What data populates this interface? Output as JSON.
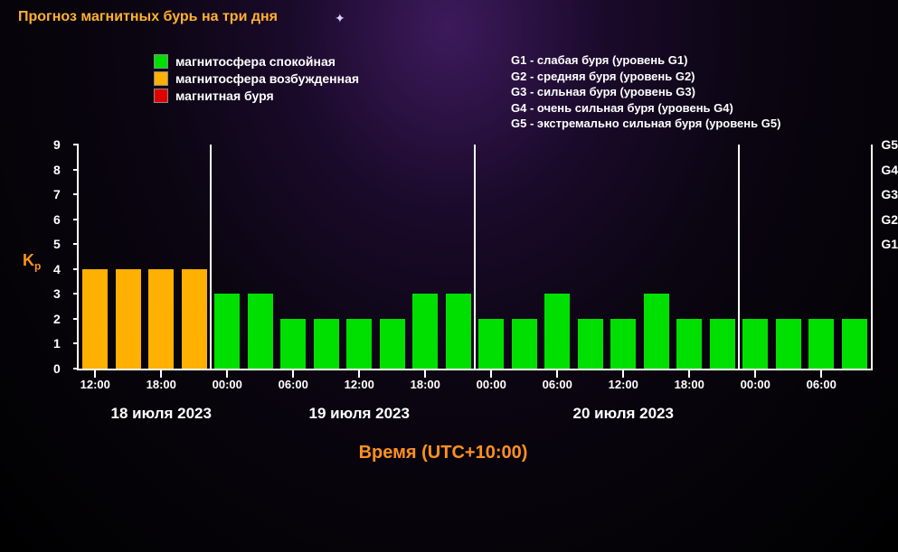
{
  "title": "Прогноз магнитных бурь на три дня",
  "legend": {
    "items": [
      {
        "color": "#00e000",
        "label": "магнитосфера спокойная"
      },
      {
        "color": "#ffb000",
        "label": "магнитосфера возбужденная"
      },
      {
        "color": "#e00000",
        "label": "магнитная буря"
      }
    ]
  },
  "g_scale_text": [
    "G1 - слабая буря (уровень G1)",
    "G2 - средняя буря (уровень G2)",
    "G3 - сильная буря (уровень G3)",
    "G4 - очень сильная буря (уровень G4)",
    "G5 - экстремально сильная буря (уровень G5)"
  ],
  "chart": {
    "type": "bar",
    "y_label": "Kp",
    "y_ticks": [
      0,
      1,
      2,
      3,
      4,
      5,
      6,
      7,
      8,
      9
    ],
    "ylim": [
      0,
      9
    ],
    "g_labels": [
      {
        "at": 5,
        "text": "G1"
      },
      {
        "at": 6,
        "text": "G2"
      },
      {
        "at": 7,
        "text": "G3"
      },
      {
        "at": 8,
        "text": "G4"
      },
      {
        "at": 9,
        "text": "G5"
      }
    ],
    "colors": {
      "calm": "#00e000",
      "excited": "#ffb000",
      "storm": "#e00000",
      "axis": "#ffffff",
      "text": "#ffffff",
      "accent": "#ff9020"
    },
    "day_dividers_at_bar_index": [
      4,
      12,
      20
    ],
    "bars": [
      {
        "value": 4,
        "color": "#ffb000"
      },
      {
        "value": 4,
        "color": "#ffb000"
      },
      {
        "value": 4,
        "color": "#ffb000"
      },
      {
        "value": 4,
        "color": "#ffb000"
      },
      {
        "value": 3,
        "color": "#00e000"
      },
      {
        "value": 3,
        "color": "#00e000"
      },
      {
        "value": 2,
        "color": "#00e000"
      },
      {
        "value": 2,
        "color": "#00e000"
      },
      {
        "value": 2,
        "color": "#00e000"
      },
      {
        "value": 2,
        "color": "#00e000"
      },
      {
        "value": 3,
        "color": "#00e000"
      },
      {
        "value": 3,
        "color": "#00e000"
      },
      {
        "value": 2,
        "color": "#00e000"
      },
      {
        "value": 2,
        "color": "#00e000"
      },
      {
        "value": 3,
        "color": "#00e000"
      },
      {
        "value": 2,
        "color": "#00e000"
      },
      {
        "value": 2,
        "color": "#00e000"
      },
      {
        "value": 3,
        "color": "#00e000"
      },
      {
        "value": 2,
        "color": "#00e000"
      },
      {
        "value": 2,
        "color": "#00e000"
      },
      {
        "value": 2,
        "color": "#00e000"
      },
      {
        "value": 2,
        "color": "#00e000"
      },
      {
        "value": 2,
        "color": "#00e000"
      },
      {
        "value": 2,
        "color": "#00e000"
      }
    ],
    "x_ticks": [
      {
        "at": 0,
        "label": "12:00"
      },
      {
        "at": 2,
        "label": "18:00"
      },
      {
        "at": 4,
        "label": "00:00"
      },
      {
        "at": 6,
        "label": "06:00"
      },
      {
        "at": 8,
        "label": "12:00"
      },
      {
        "at": 10,
        "label": "18:00"
      },
      {
        "at": 12,
        "label": "00:00"
      },
      {
        "at": 14,
        "label": "06:00"
      },
      {
        "at": 16,
        "label": "12:00"
      },
      {
        "at": 18,
        "label": "18:00"
      },
      {
        "at": 20,
        "label": "00:00"
      },
      {
        "at": 22,
        "label": "06:00"
      }
    ],
    "date_labels": [
      {
        "center_bar": 2,
        "text": "18 июля 2023"
      },
      {
        "center_bar": 8,
        "text": "19 июля 2023"
      },
      {
        "center_bar": 16,
        "text": "20 июля 2023"
      }
    ],
    "x_axis_title": "Время (UTC+10:00)"
  }
}
